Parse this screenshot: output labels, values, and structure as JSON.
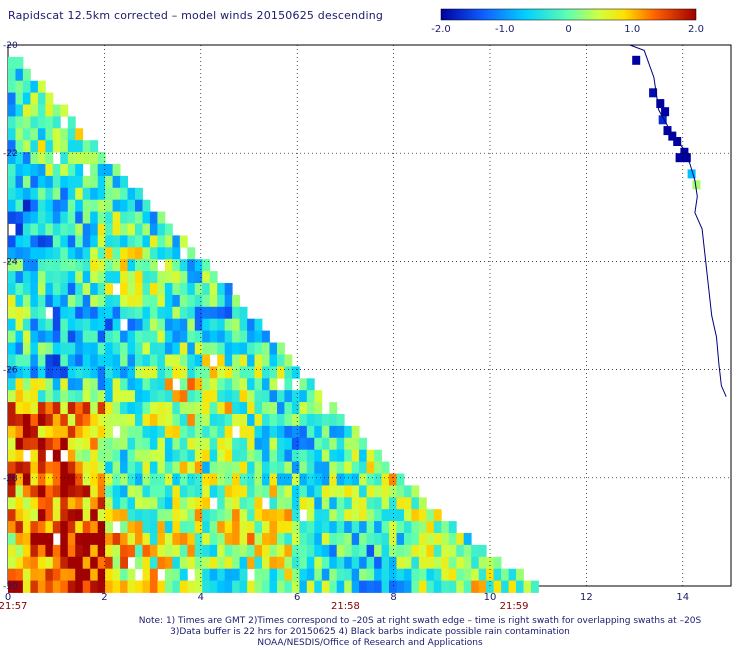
{
  "title": "Rapidscat 12.5km corrected – model winds 20150625 descending",
  "colorbar": {
    "ticks": [
      "-2.0",
      "-1.0",
      "0",
      "1.0",
      "2.0"
    ],
    "range": [
      -2.0,
      2.0
    ]
  },
  "notes": {
    "line1": "Note: 1) Times are GMT 2)Times correspond to –20S at right swath edge – time is right swath for overlapping swaths at –20S",
    "line2": "3)Data buffer is 22 hrs for 20150625 4) Black barbs indicate possible rain contamination",
    "line3": "NOAA/NESDIS/Office of Research and Applications"
  },
  "chart_data": {
    "type": "heatmap",
    "title": "Rapidscat 12.5km corrected – model winds 20150625 descending",
    "xlim": [
      0,
      15
    ],
    "ylim": [
      -30,
      -20
    ],
    "x_ticks": [
      "0",
      "2",
      "4",
      "6",
      "8",
      "10",
      "12",
      "14"
    ],
    "y_ticks": [
      "-20",
      "-22",
      "-24",
      "-26",
      "-28",
      "-30"
    ],
    "time_labels": [
      {
        "x": 0,
        "label": "21:57"
      },
      {
        "x": 7,
        "label": "21:58"
      },
      {
        "x": 10.5,
        "label": "21:59"
      }
    ],
    "grid": true,
    "colorscale": {
      "min": -2.0,
      "max": 2.0
    },
    "swath_edge": [
      [
        0,
        -20
      ],
      [
        2.0,
        -22
      ],
      [
        4.1,
        -24
      ],
      [
        6.1,
        -26
      ],
      [
        8.2,
        -28
      ],
      [
        10.2,
        -29.5
      ],
      [
        11.2,
        -30
      ]
    ],
    "coast_patches": [
      {
        "x": 12.95,
        "y": -20.2,
        "value": -2.0
      },
      {
        "x": 13.3,
        "y": -20.8,
        "value": -1.9
      },
      {
        "x": 13.5,
        "y": -21.3,
        "value": -1.7
      },
      {
        "x": 13.8,
        "y": -21.7,
        "value": -2.0
      },
      {
        "x": 14.0,
        "y": -22.0,
        "value": -2.0
      },
      {
        "x": 14.1,
        "y": -22.3,
        "value": -0.8
      },
      {
        "x": 14.2,
        "y": -22.5,
        "value": 0.3
      }
    ]
  }
}
